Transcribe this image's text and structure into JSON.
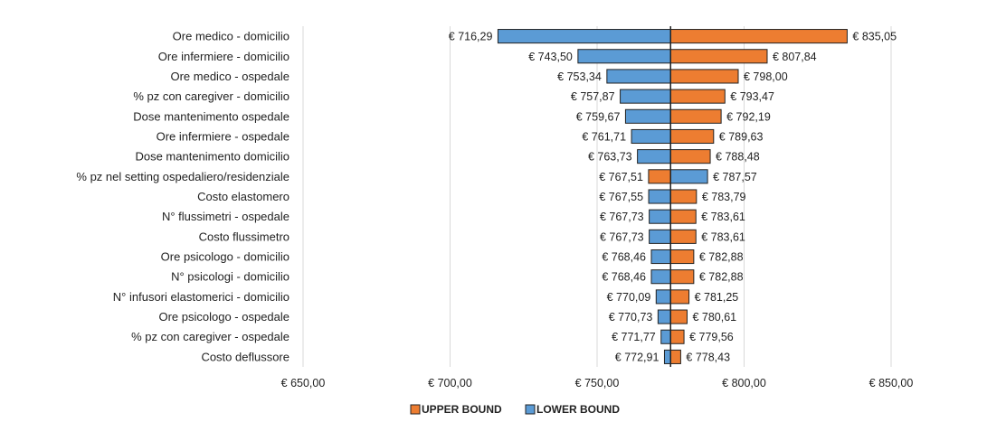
{
  "chart_data": {
    "type": "bar",
    "orientation": "horizontal",
    "subtype": "tornado",
    "base_value": 775.0,
    "categories": [
      "Ore medico - domicilio",
      "Ore infermiere - domicilio",
      "Ore medico - ospedale",
      "% pz con caregiver - domicilio",
      "Dose mantenimento ospedale",
      "Ore infermiere - ospedale",
      "Dose mantenimento domicilio",
      "% pz nel setting ospedaliero/residenziale",
      "Costo elastomero",
      "N° flussimetri - ospedale",
      "Costo flussimetro",
      "Ore psicologo - domicilio",
      "N° psicologi - domicilio",
      "N° infusori elastomerici - domicilio",
      "Ore psicologo - ospedale",
      "% pz con caregiver - ospedale",
      "Costo deflussore"
    ],
    "series": [
      {
        "name": "UPPER BOUND",
        "color": "#ED7D31",
        "values": [
          835.05,
          807.84,
          798.0,
          793.47,
          792.19,
          789.63,
          788.48,
          767.51,
          783.79,
          783.61,
          783.61,
          782.88,
          782.88,
          781.25,
          780.61,
          779.56,
          778.43
        ],
        "labels": [
          "€ 835,05",
          "€ 807,84",
          "€ 798,00",
          "€ 793,47",
          "€ 792,19",
          "€ 789,63",
          "€ 788,48",
          "€ 767,51",
          "€ 783,79",
          "€ 783,61",
          "€ 783,61",
          "€ 782,88",
          "€ 782,88",
          "€ 781,25",
          "€ 780,61",
          "€ 779,56",
          "€ 778,43"
        ]
      },
      {
        "name": "LOWER BOUND",
        "color": "#5B9BD5",
        "values": [
          716.29,
          743.5,
          753.34,
          757.87,
          759.67,
          761.71,
          763.73,
          787.57,
          767.55,
          767.73,
          767.73,
          768.46,
          768.46,
          770.09,
          770.73,
          771.77,
          772.91
        ],
        "labels": [
          "€ 716,29",
          "€ 743,50",
          "€ 753,34",
          "€ 757,87",
          "€ 759,67",
          "€ 761,71",
          "€ 763,73",
          "€ 787,57",
          "€ 767,55",
          "€ 767,73",
          "€ 767,73",
          "€ 768,46",
          "€ 768,46",
          "€ 770,09",
          "€ 770,73",
          "€ 771,77",
          "€ 772,91"
        ]
      }
    ],
    "xlim": [
      650,
      850
    ],
    "xticks": [
      650,
      700,
      750,
      800,
      850
    ],
    "xtick_labels": [
      "€ 650,00",
      "€ 700,00",
      "€ 750,00",
      "€ 800,00",
      "€ 850,00"
    ],
    "grid": "vertical",
    "legend_position": "bottom",
    "legend": [
      "UPPER BOUND",
      "LOWER BOUND"
    ],
    "title": "",
    "xlabel": "",
    "ylabel": ""
  }
}
